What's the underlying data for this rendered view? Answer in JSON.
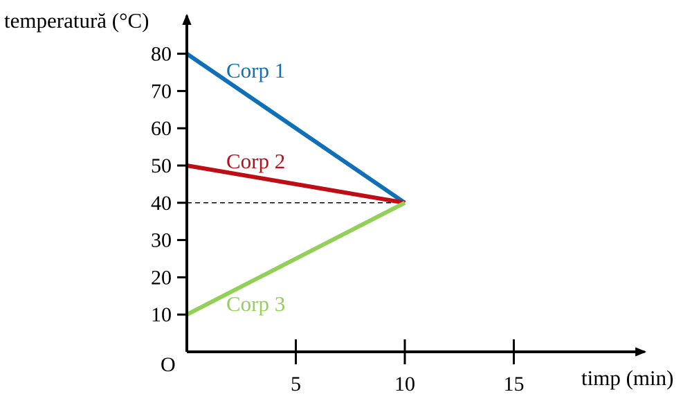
{
  "chart_data": {
    "type": "line",
    "ylabel": "temperatură (°C)",
    "xlabel": "timp (min)",
    "origin_label": "O",
    "xlim": [
      0,
      21
    ],
    "ylim": [
      0,
      88
    ],
    "x_ticks": [
      5,
      10,
      15
    ],
    "y_ticks": [
      10,
      20,
      30,
      40,
      50,
      60,
      70,
      80
    ],
    "grid": false,
    "reference_line": {
      "y": 40,
      "x_from": 0,
      "x_to": 10,
      "style": "dashed"
    },
    "series": [
      {
        "name": "Corp 1",
        "color": "#0f6fb8",
        "points": [
          [
            0,
            80
          ],
          [
            10,
            40
          ]
        ]
      },
      {
        "name": "Corp 2",
        "color": "#bf0d16",
        "points": [
          [
            0,
            50
          ],
          [
            10,
            40
          ]
        ]
      },
      {
        "name": "Corp 3",
        "color": "#93d05a",
        "points": [
          [
            0,
            10
          ],
          [
            10,
            40
          ]
        ]
      }
    ]
  }
}
